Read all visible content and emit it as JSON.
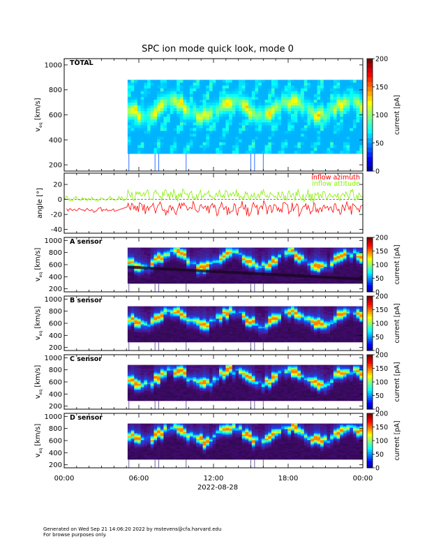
{
  "chart_data": {
    "type": "heatmap",
    "title": "SPC ion mode quick look, mode 0",
    "x_ticks": [
      "00:00",
      "06:00",
      "12:00",
      "18:00",
      "00:00"
    ],
    "x_range_hours": [
      0,
      24
    ],
    "date_label": "2022-08-28",
    "panels": [
      {
        "id": "total",
        "label": "TOTAL",
        "type": "heatmap",
        "ylabel": "v",
        "ylabel_sub": "eq",
        "ylabel_unit": "[km/s]",
        "ylim": [
          150,
          1050
        ],
        "yticks": [
          200,
          400,
          600,
          800,
          1000
        ],
        "data_start_hour": 5.1,
        "data_vrange": [
          290,
          880
        ],
        "peak_velocity": 650,
        "colorbar": {
          "label": "current [pA]",
          "range": [
            0,
            200
          ],
          "ticks": [
            0,
            50,
            100,
            150,
            200
          ]
        }
      },
      {
        "id": "angle",
        "type": "line",
        "ylabel": "angle [°]",
        "ylim": [
          -45,
          35
        ],
        "yticks": [
          -40,
          -20,
          0,
          20
        ],
        "series": [
          {
            "name": "inflow azimuth",
            "color": "#ff0000",
            "mean_deg": -12
          },
          {
            "name": "inflow attitude",
            "color": "#88ee00",
            "mean_deg": 5
          }
        ]
      },
      {
        "id": "a",
        "label": "A sensor",
        "type": "heatmap",
        "ylabel": "v",
        "ylabel_sub": "eq",
        "ylabel_unit": "[km/s]",
        "ylim": [
          150,
          1050
        ],
        "yticks": [
          200,
          400,
          600,
          800,
          1000
        ],
        "data_start_hour": 5.1,
        "data_vrange": [
          290,
          880
        ],
        "peak_velocity": 660,
        "colorbar": {
          "label": "current [pA]",
          "range": [
            0,
            200
          ],
          "ticks": [
            0,
            50,
            100,
            150,
            200
          ]
        }
      },
      {
        "id": "b",
        "label": "B sensor",
        "type": "heatmap",
        "ylabel": "v",
        "ylabel_sub": "eq",
        "ylabel_unit": "[km/s]",
        "ylim": [
          150,
          1050
        ],
        "yticks": [
          200,
          400,
          600,
          800,
          1000
        ],
        "data_start_hour": 5.1,
        "data_vrange": [
          290,
          880
        ],
        "peak_velocity": 660,
        "colorbar": {
          "label": "current [pA]",
          "range": [
            0,
            200
          ],
          "ticks": [
            0,
            50,
            100,
            150,
            200
          ]
        }
      },
      {
        "id": "c",
        "label": "C sensor",
        "type": "heatmap",
        "ylabel": "v",
        "ylabel_sub": "eq",
        "ylabel_unit": "[km/s]",
        "ylim": [
          150,
          1050
        ],
        "yticks": [
          200,
          400,
          600,
          800,
          1000
        ],
        "data_start_hour": 5.1,
        "data_vrange": [
          290,
          880
        ],
        "peak_velocity": 650,
        "colorbar": {
          "label": "current [pA]",
          "range": [
            0,
            200
          ],
          "ticks": [
            0,
            50,
            100,
            150,
            200
          ]
        }
      },
      {
        "id": "d",
        "label": "D sensor",
        "type": "heatmap",
        "ylabel": "v",
        "ylabel_sub": "eq",
        "ylabel_unit": "[km/s]",
        "ylim": [
          150,
          1050
        ],
        "yticks": [
          200,
          400,
          600,
          800,
          1000
        ],
        "data_start_hour": 5.1,
        "data_vrange": [
          290,
          880
        ],
        "peak_velocity": 680,
        "colorbar": {
          "label": "current [pA]",
          "range": [
            0,
            200
          ],
          "ticks": [
            0,
            50,
            100,
            150,
            200
          ]
        }
      }
    ]
  },
  "footer": {
    "line1": "Generated on Wed Sep 21 14:06:20 2022 by mstevens@cfa.harvard.edu",
    "line2": "For browse purposes only."
  }
}
